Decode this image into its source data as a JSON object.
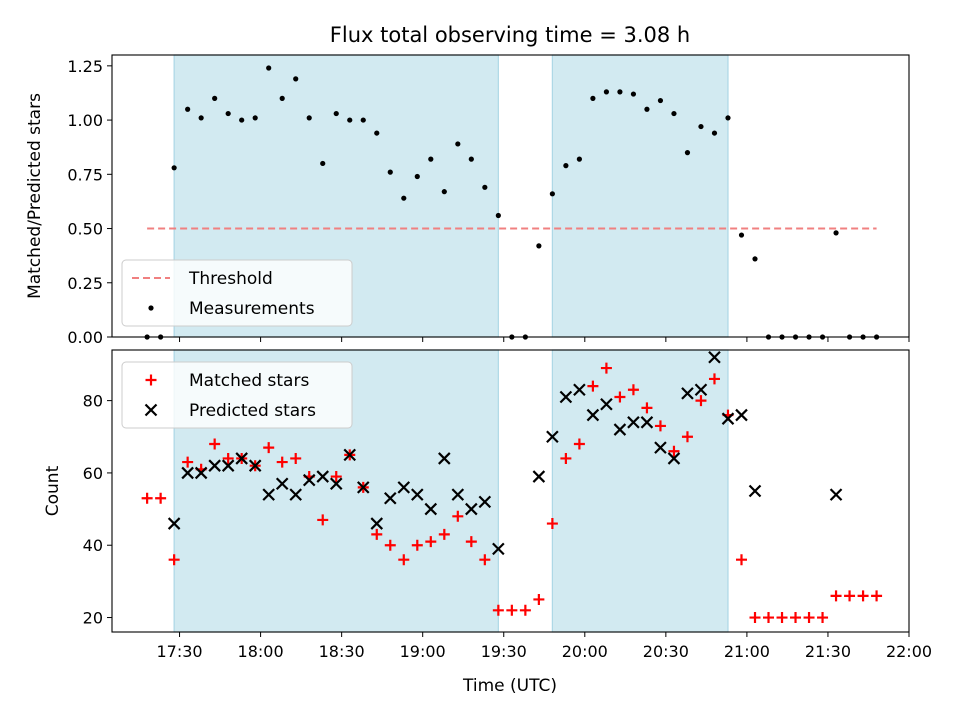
{
  "chart_data": {
    "title": "Flux total observing time = 3.08 h",
    "xlabel": "Time (UTC)",
    "x_ticks": [
      "17:30",
      "18:00",
      "18:30",
      "19:00",
      "19:30",
      "20:00",
      "20:30",
      "21:00",
      "21:30",
      "22:00"
    ],
    "x_range": [
      "17:05",
      "22:00"
    ],
    "shaded_intervals": [
      [
        "17:28",
        "19:28"
      ],
      [
        "19:48",
        "20:53"
      ]
    ],
    "shade_color": "#add8e6",
    "panels": [
      {
        "id": "top",
        "type": "scatter",
        "ylabel": "Matched/Predicted stars",
        "ylim": [
          0,
          1.3
        ],
        "yticks": [
          "0.00",
          "0.25",
          "0.50",
          "0.75",
          "1.00",
          "1.25"
        ],
        "legend_placement": "lower-left",
        "threshold": {
          "name": "Threshold",
          "value": 0.5,
          "x_start": "17:18",
          "x_end": "21:48",
          "color": "#f08080"
        },
        "series": [
          {
            "name": "Measurements",
            "marker": "dot",
            "color": "#000000",
            "x": [
              "17:18",
              "17:23",
              "17:28",
              "17:33",
              "17:38",
              "17:43",
              "17:48",
              "17:53",
              "17:58",
              "18:03",
              "18:08",
              "18:13",
              "18:18",
              "18:23",
              "18:28",
              "18:33",
              "18:38",
              "18:43",
              "18:48",
              "18:53",
              "18:58",
              "19:03",
              "19:08",
              "19:13",
              "19:18",
              "19:23",
              "19:28",
              "19:33",
              "19:38",
              "19:43",
              "19:48",
              "19:53",
              "19:58",
              "20:03",
              "20:08",
              "20:13",
              "20:18",
              "20:23",
              "20:28",
              "20:33",
              "20:38",
              "20:43",
              "20:48",
              "20:53",
              "20:58",
              "21:03",
              "21:08",
              "21:13",
              "21:18",
              "21:23",
              "21:28",
              "21:33",
              "21:38",
              "21:43",
              "21:48"
            ],
            "y": [
              0,
              0,
              0.78,
              1.05,
              1.01,
              1.1,
              1.03,
              1.0,
              1.01,
              1.24,
              1.1,
              1.19,
              1.01,
              0.8,
              1.03,
              1.0,
              1.0,
              0.94,
              0.76,
              0.64,
              0.74,
              0.82,
              0.67,
              0.89,
              0.82,
              0.69,
              0.56,
              0,
              0,
              0.42,
              0.66,
              0.79,
              0.82,
              1.1,
              1.13,
              1.13,
              1.12,
              1.05,
              1.09,
              1.03,
              0.85,
              0.97,
              0.94,
              1.01,
              0.47,
              0.36,
              0,
              0,
              0,
              0,
              0,
              0.48,
              0,
              0,
              0
            ]
          }
        ]
      },
      {
        "id": "bottom",
        "type": "scatter",
        "ylabel": "Count",
        "ylim": [
          16,
          94
        ],
        "yticks": [
          "20",
          "40",
          "60",
          "80"
        ],
        "legend_placement": "upper-left",
        "series": [
          {
            "name": "Matched stars",
            "marker": "plus",
            "color": "#ff0000",
            "x": [
              "17:18",
              "17:23",
              "17:28",
              "17:33",
              "17:38",
              "17:43",
              "17:48",
              "17:53",
              "17:58",
              "18:03",
              "18:08",
              "18:13",
              "18:18",
              "18:23",
              "18:28",
              "18:33",
              "18:38",
              "18:43",
              "18:48",
              "18:53",
              "18:58",
              "19:03",
              "19:08",
              "19:13",
              "19:18",
              "19:23",
              "19:28",
              "19:33",
              "19:38",
              "19:43",
              "19:48",
              "19:53",
              "19:58",
              "20:03",
              "20:08",
              "20:13",
              "20:18",
              "20:23",
              "20:28",
              "20:33",
              "20:38",
              "20:43",
              "20:48",
              "20:53",
              "20:58",
              "21:03",
              "21:08",
              "21:13",
              "21:18",
              "21:23",
              "21:28",
              "21:33",
              "21:38",
              "21:43",
              "21:48"
            ],
            "y": [
              53,
              53,
              36,
              63,
              61,
              68,
              64,
              64,
              62,
              67,
              63,
              64,
              59,
              47,
              59,
              65,
              56,
              43,
              40,
              36,
              40,
              41,
              43,
              48,
              41,
              36,
              22,
              22,
              22,
              25,
              46,
              64,
              68,
              84,
              89,
              81,
              83,
              78,
              73,
              66,
              70,
              80,
              86,
              76,
              36,
              20,
              20,
              20,
              20,
              20,
              20,
              26,
              26,
              26,
              26
            ]
          },
          {
            "name": "Predicted stars",
            "marker": "x",
            "color": "#000000",
            "x": [
              "17:28",
              "17:33",
              "17:38",
              "17:43",
              "17:48",
              "17:53",
              "17:58",
              "18:03",
              "18:08",
              "18:13",
              "18:18",
              "18:23",
              "18:28",
              "18:33",
              "18:38",
              "18:43",
              "18:48",
              "18:53",
              "18:58",
              "19:03",
              "19:08",
              "19:13",
              "19:18",
              "19:23",
              "19:28",
              "19:43",
              "19:48",
              "19:53",
              "19:58",
              "20:03",
              "20:08",
              "20:13",
              "20:18",
              "20:23",
              "20:28",
              "20:33",
              "20:38",
              "20:43",
              "20:48",
              "20:53",
              "20:58",
              "21:03",
              "21:33"
            ],
            "y": [
              46,
              60,
              60,
              62,
              62,
              64,
              62,
              54,
              57,
              54,
              58,
              59,
              57,
              65,
              56,
              46,
              53,
              56,
              54,
              50,
              64,
              54,
              50,
              52,
              39,
              59,
              70,
              81,
              83,
              76,
              79,
              72,
              74,
              74,
              67,
              64,
              82,
              83,
              92,
              75,
              76,
              55,
              54
            ]
          }
        ]
      }
    ]
  }
}
